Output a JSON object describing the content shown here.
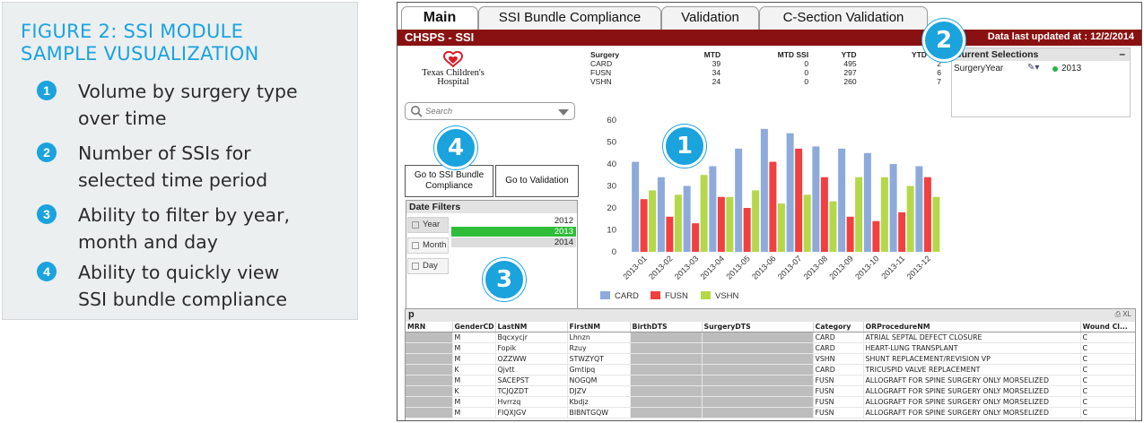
{
  "figure": {
    "title_line1": "FIGURE 2: SSI MODULE",
    "title_line2": "SAMPLE VUSUALIZATION",
    "accent_color": "#1aa3dd",
    "items": [
      {
        "num": "1",
        "line1": "Volume by surgery type",
        "line2": "over time"
      },
      {
        "num": "2",
        "line1": "Number of SSIs for",
        "line2": "selected time period"
      },
      {
        "num": "3",
        "line1": "Ability to filter by year,",
        "line2": "month and day"
      },
      {
        "num": "4",
        "line1": "Ability to quickly view",
        "line2": "SSI bundle compliance"
      }
    ]
  },
  "tabs": [
    "Main",
    "SSI Bundle Compliance",
    "Validation",
    "C-Section Validation"
  ],
  "app_title": "CHSPS - SSI",
  "title_bar_color": "#8a1111",
  "last_updated": "Data last updated at : 12/2/2014",
  "logo": {
    "line1": "Texas Children's",
    "line2": "Hospital"
  },
  "summary": {
    "headers": [
      "Surgery",
      "MTD",
      "MTD SSI",
      "YTD",
      "YTD SSI"
    ],
    "rows": [
      [
        "CARD",
        "39",
        "0",
        "495",
        "2"
      ],
      [
        "FUSN",
        "34",
        "0",
        "297",
        "6"
      ],
      [
        "VSHN",
        "24",
        "0",
        "260",
        "7"
      ]
    ]
  },
  "current_selections": {
    "title": "Current Selections",
    "minimize": "–",
    "field": "SurgeryYear",
    "value": "2013",
    "filter_icon": "eraser-icon"
  },
  "search": {
    "placeholder": "Search"
  },
  "buttons": {
    "bundle_line1": "Go to SSI Bundle",
    "bundle_line2": "Compliance",
    "validation": "Go to Validation"
  },
  "date_filters": {
    "title": "Date Filters",
    "buttons": [
      "Year",
      "Month",
      "Day"
    ],
    "years": [
      "2012",
      "2013",
      "2014"
    ],
    "selected_year": "2013"
  },
  "chart_data": {
    "type": "bar",
    "categories": [
      "2013-01",
      "2013-02",
      "2013-03",
      "2013-04",
      "2013-05",
      "2013-06",
      "2013-07",
      "2013-08",
      "2013-09",
      "2013-10",
      "2013-11",
      "2013-12"
    ],
    "series": [
      {
        "name": "CARD",
        "color": "#8eaadb",
        "values": [
          41,
          34,
          30,
          39,
          47,
          56,
          54,
          48,
          47,
          45,
          40,
          39
        ]
      },
      {
        "name": "FUSN",
        "color": "#f04040",
        "values": [
          24,
          16,
          13,
          25,
          20,
          41,
          47,
          34,
          16,
          14,
          18,
          34
        ]
      },
      {
        "name": "VSHN",
        "color": "#b5d84a",
        "values": [
          28,
          26,
          35,
          25,
          28,
          22,
          26,
          23,
          34,
          34,
          30,
          25
        ]
      }
    ],
    "ylim": [
      0,
      60
    ],
    "yticks": [
      "0",
      "10",
      "20",
      "30",
      "40",
      "50",
      "60"
    ],
    "legend": "bottom-left",
    "grid": false
  },
  "table": {
    "title": "p",
    "tools": "⎙ XL",
    "headers": [
      "MRN",
      "GenderCD",
      "LastNM",
      "FirstNM",
      "BirthDTS",
      "SurgeryDTS",
      "Category",
      "ORProcedureNM",
      "Wound Cl..."
    ],
    "rows": [
      [
        "",
        "M",
        "Bqcxycjr",
        "Lhnzn",
        "",
        "",
        "CARD",
        "ATRIAL SEPTAL DEFECT CLOSURE",
        "C"
      ],
      [
        "",
        "M",
        "Fopik",
        "Rzuy",
        "",
        "",
        "CARD",
        "HEART-LUNG TRANSPLANT",
        "C"
      ],
      [
        "",
        "M",
        "OZZWW",
        "STWZYQT",
        "",
        "",
        "VSHN",
        "SHUNT REPLACEMENT/REVISION VP",
        "C"
      ],
      [
        "",
        "K",
        "Qjvtt",
        "Gmtipq",
        "",
        "",
        "CARD",
        "TRICUSPID VALVE REPLACEMENT",
        "C"
      ],
      [
        "",
        "M",
        "SACEPST",
        "NOGQM",
        "",
        "",
        "FUSN",
        "ALLOGRAFT FOR SPINE SURGERY ONLY MORSELIZED",
        "C"
      ],
      [
        "",
        "K",
        "TCJQZDT",
        "DJZV",
        "",
        "",
        "FUSN",
        "ALLOGRAFT FOR SPINE SURGERY ONLY MORSELIZED",
        "C"
      ],
      [
        "",
        "M",
        "Hvrrzq",
        "Kbdjz",
        "",
        "",
        "FUSN",
        "ALLOGRAFT FOR SPINE SURGERY ONLY MORSELIZED",
        "C"
      ],
      [
        "",
        "M",
        "FIQXJGV",
        "BIBNTGQW",
        "",
        "",
        "FUSN",
        "ALLOGRAFT FOR SPINE SURGERY ONLY MORSELIZED",
        "C"
      ]
    ]
  },
  "callouts": [
    "1",
    "2",
    "3",
    "4"
  ]
}
